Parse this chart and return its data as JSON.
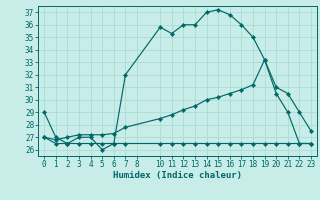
{
  "xlabel": "Humidex (Indice chaleur)",
  "bg_color": "#c8ece8",
  "grid_color": "#a8dcd5",
  "line_color": "#006868",
  "xlim": [
    -0.5,
    23.5
  ],
  "ylim": [
    25.5,
    37.5
  ],
  "xticks": [
    0,
    1,
    2,
    3,
    4,
    5,
    6,
    7,
    8,
    10,
    11,
    12,
    13,
    14,
    15,
    16,
    17,
    18,
    19,
    20,
    21,
    22,
    23
  ],
  "yticks": [
    26,
    27,
    28,
    29,
    30,
    31,
    32,
    33,
    34,
    35,
    36,
    37
  ],
  "series1_x": [
    0,
    1,
    2,
    3,
    4,
    5,
    6,
    7,
    10,
    11,
    12,
    13,
    14,
    15,
    16,
    17,
    18,
    19,
    20,
    21,
    22,
    23
  ],
  "series1_y": [
    29.0,
    27.0,
    26.5,
    27.0,
    27.0,
    26.0,
    26.5,
    32.0,
    35.8,
    35.3,
    36.0,
    36.0,
    37.0,
    37.2,
    36.8,
    36.0,
    35.0,
    33.2,
    31.0,
    30.5,
    29.0,
    27.5
  ],
  "series2_x": [
    0,
    1,
    2,
    3,
    4,
    5,
    6,
    7,
    10,
    11,
    12,
    13,
    14,
    15,
    16,
    17,
    18,
    19,
    20,
    21,
    22,
    23
  ],
  "series2_y": [
    27.0,
    26.5,
    26.5,
    26.5,
    26.5,
    26.5,
    26.5,
    26.5,
    26.5,
    26.5,
    26.5,
    26.5,
    26.5,
    26.5,
    26.5,
    26.5,
    26.5,
    26.5,
    26.5,
    26.5,
    26.5,
    26.5
  ],
  "series3_x": [
    0,
    1,
    2,
    3,
    4,
    5,
    6,
    7,
    10,
    11,
    12,
    13,
    14,
    15,
    16,
    17,
    18,
    19,
    20,
    21,
    22,
    23
  ],
  "series3_y": [
    27.0,
    26.8,
    27.0,
    27.2,
    27.2,
    27.2,
    27.3,
    27.8,
    28.5,
    28.8,
    29.2,
    29.5,
    30.0,
    30.2,
    30.5,
    30.8,
    31.2,
    33.2,
    30.5,
    29.0,
    26.5,
    26.5
  ]
}
